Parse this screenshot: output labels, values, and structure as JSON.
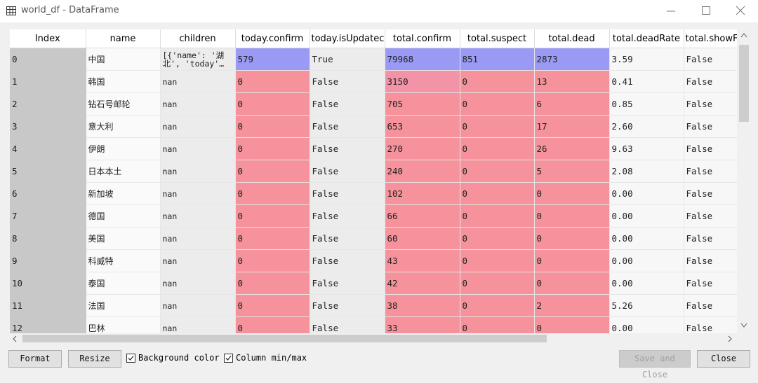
{
  "window": {
    "title": "world_df - DataFrame"
  },
  "table": {
    "columns": [
      "Index",
      "name",
      "children",
      "today.confirm",
      "today.isUpdatec",
      "total.confirm",
      "total.suspect",
      "total.dead",
      "total.deadRate",
      "total.showF"
    ],
    "rows": [
      [
        "0",
        "中国",
        "[{'name': '湖北', 'today'…",
        "579",
        "True",
        "79968",
        "851",
        "2873",
        "3.59",
        "False"
      ],
      [
        "1",
        "韩国",
        "nan",
        "0",
        "False",
        "3150",
        "0",
        "13",
        "0.41",
        "False"
      ],
      [
        "2",
        "钻石号邮轮",
        "nan",
        "0",
        "False",
        "705",
        "0",
        "6",
        "0.85",
        "False"
      ],
      [
        "3",
        "意大利",
        "nan",
        "0",
        "False",
        "653",
        "0",
        "17",
        "2.60",
        "False"
      ],
      [
        "4",
        "伊朗",
        "nan",
        "0",
        "False",
        "270",
        "0",
        "26",
        "9.63",
        "False"
      ],
      [
        "5",
        "日本本土",
        "nan",
        "0",
        "False",
        "240",
        "0",
        "5",
        "2.08",
        "False"
      ],
      [
        "6",
        "新加坡",
        "nan",
        "0",
        "False",
        "102",
        "0",
        "0",
        "0.00",
        "False"
      ],
      [
        "7",
        "德国",
        "nan",
        "0",
        "False",
        "66",
        "0",
        "0",
        "0.00",
        "False"
      ],
      [
        "8",
        "美国",
        "nan",
        "0",
        "False",
        "60",
        "0",
        "0",
        "0.00",
        "False"
      ],
      [
        "9",
        "科威特",
        "nan",
        "0",
        "False",
        "43",
        "0",
        "0",
        "0.00",
        "False"
      ],
      [
        "10",
        "泰国",
        "nan",
        "0",
        "False",
        "42",
        "0",
        "0",
        "0.00",
        "False"
      ],
      [
        "11",
        "法国",
        "nan",
        "0",
        "False",
        "38",
        "0",
        "2",
        "5.26",
        "False"
      ],
      [
        "12",
        "巴林",
        "nan",
        "0",
        "False",
        "33",
        "0",
        "0",
        "0.00",
        "False"
      ]
    ]
  },
  "buttons": {
    "format": "Format",
    "resize": "Resize",
    "background_color": "Background color",
    "column_min_max": "Column min/max",
    "save_and_close": "Save and Close",
    "close": "Close"
  }
}
